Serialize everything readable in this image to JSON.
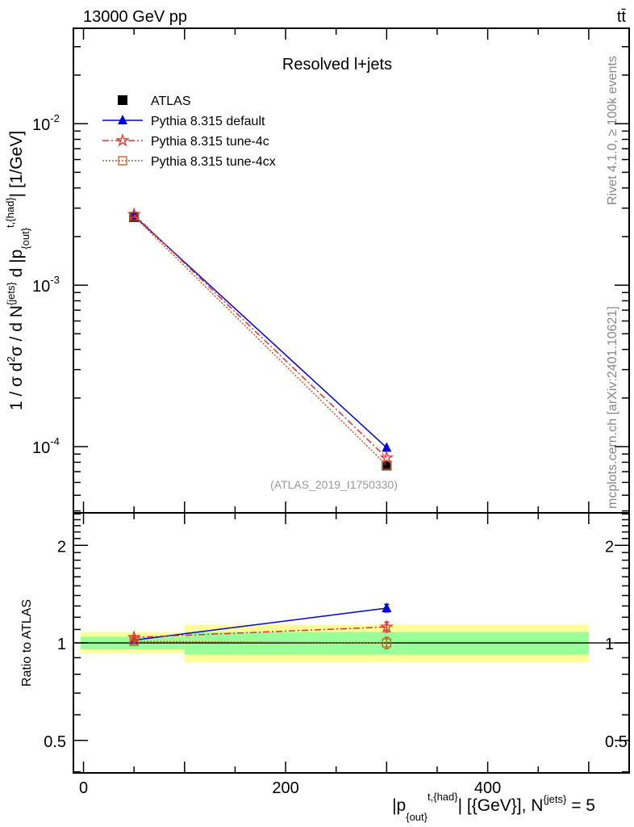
{
  "header": {
    "energy_label": "13000 GeV pp",
    "process_label": "tt̄"
  },
  "side_labels": {
    "rivet": "Rivet 4.1.0, ≥ 100k events",
    "mcplots": "mcplots.cern.ch [arXiv:2401.10621]"
  },
  "chart_data": [
    {
      "type": "line",
      "title": "Resolved l+jets",
      "analysis_label": "(ATLAS_2019_I1750330)",
      "ylabel_parts": [
        "1 / σ d",
        "2",
        "σ / d N",
        "{jets}",
        " d |p",
        "{out}",
        "t,{had}",
        "| [1/GeV]"
      ],
      "yscale": "log",
      "ylim": [
        3.89e-05,
        0.039
      ],
      "xlim": [
        -10,
        540
      ],
      "yticks": [
        {
          "v": 0.01,
          "base": "10",
          "exp": "-2"
        },
        {
          "v": 0.001,
          "base": "10",
          "exp": "-3"
        },
        {
          "v": 0.0001,
          "base": "10",
          "exp": "-4"
        }
      ],
      "legend_position": "top-left",
      "x": [
        50,
        300
      ],
      "bins": [
        [
          0,
          100
        ],
        [
          100,
          500
        ]
      ],
      "series": [
        {
          "name": "ATLAS",
          "color": "#000000",
          "marker": "square-filled",
          "line": "none",
          "values": [
            0.00264,
            7.64e-05
          ]
        },
        {
          "name": "Pythia 8.315 default",
          "color": "#0000e0",
          "marker": "triangle",
          "line": "solid",
          "values": [
            0.00269,
            9.85e-05
          ]
        },
        {
          "name": "Pythia 8.315 tune-4c",
          "color": "#e83030",
          "marker": "star-open",
          "line": "dashdot",
          "values": [
            0.00274,
            8.53e-05
          ]
        },
        {
          "name": "Pythia 8.315 tune-4cx",
          "color": "#c85a1e",
          "marker": "square-open",
          "line": "dotted",
          "values": [
            0.00267,
            7.67e-05
          ]
        }
      ]
    },
    {
      "type": "line",
      "ylabel": "Ratio to ATLAS",
      "xlabel_parts": [
        "|p",
        "{out}",
        "t,{had}",
        "| [{GeV}], N",
        "{jets}",
        " = 5"
      ],
      "yscale": "log",
      "ylim": [
        0.397,
        2.52
      ],
      "xlim": [
        -10,
        540
      ],
      "yticks": [
        {
          "v": 2,
          "label": "2"
        },
        {
          "v": 1,
          "label": "1"
        },
        {
          "v": 0.5,
          "label": "0.5"
        }
      ],
      "xticks": [
        {
          "v": 0,
          "label": "0"
        },
        {
          "v": 200,
          "label": "200"
        },
        {
          "v": 400,
          "label": "400"
        }
      ],
      "x": [
        50,
        300
      ],
      "bands": [
        {
          "bin": [
            -3,
            100
          ],
          "stat_sys": [
            0.93,
            1.08
          ],
          "stat": [
            0.955,
            1.045
          ]
        },
        {
          "bin": [
            100,
            500
          ],
          "stat_sys": [
            0.87,
            1.14
          ],
          "stat": [
            0.92,
            1.08
          ]
        }
      ],
      "series": [
        {
          "name": "Pythia 8.315 default",
          "color": "#0000e0",
          "marker": "triangle",
          "line": "solid",
          "values": [
            1.02,
            1.28
          ],
          "errors": [
            0.01,
            0.035
          ]
        },
        {
          "name": "Pythia 8.315 tune-4c",
          "color": "#e83030",
          "marker": "star-open",
          "line": "dashdot",
          "values": [
            1.04,
            1.12
          ],
          "errors": [
            0.01,
            0.04
          ]
        },
        {
          "name": "Pythia 8.315 tune-4cx",
          "color": "#c85a1e",
          "marker": "square-open",
          "line": "dotted",
          "values": [
            1.01,
            1.0
          ],
          "errors": [
            0.01,
            0.04
          ]
        }
      ]
    }
  ]
}
